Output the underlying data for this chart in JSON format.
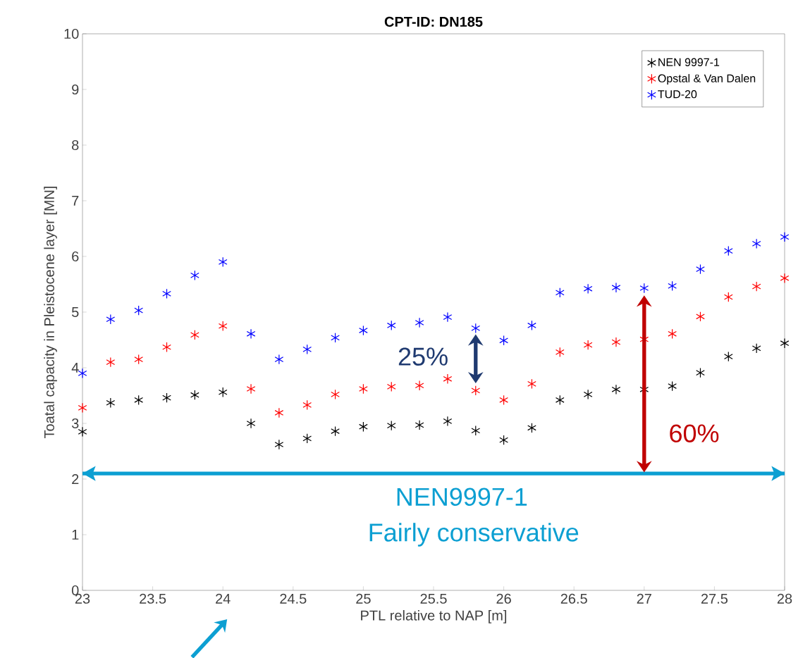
{
  "chart_data": {
    "type": "scatter",
    "title": "CPT-ID: DN185",
    "xlabel": "PTL relative to NAP [m]",
    "ylabel": "Toatal capacity in Pleistocene layer [MN]",
    "x": [
      23,
      23.2,
      23.4,
      23.6,
      23.8,
      24,
      24.2,
      24.4,
      24.6,
      24.8,
      25,
      25.2,
      25.4,
      25.6,
      25.8,
      26,
      26.2,
      26.4,
      26.6,
      26.8,
      27,
      27.2,
      27.4,
      27.6,
      27.8,
      28
    ],
    "series": [
      {
        "name": "NEN 9997-1",
        "color": "#000000",
        "values": [
          2.85,
          3.37,
          3.42,
          3.46,
          3.51,
          3.56,
          3.0,
          2.62,
          2.73,
          2.86,
          2.94,
          2.96,
          2.97,
          3.04,
          2.87,
          2.7,
          2.92,
          3.42,
          3.52,
          3.61,
          3.61,
          3.67,
          3.91,
          4.2,
          4.35,
          4.44
        ]
      },
      {
        "name": "Opstal & Van Dalen",
        "color": "#ff0000",
        "values": [
          3.28,
          4.1,
          4.15,
          4.37,
          4.59,
          4.75,
          3.62,
          3.19,
          3.33,
          3.52,
          3.62,
          3.66,
          3.68,
          3.8,
          3.59,
          3.42,
          3.71,
          4.28,
          4.41,
          4.46,
          4.51,
          4.61,
          4.92,
          5.27,
          5.46,
          5.61
        ]
      },
      {
        "name": "TUD-20",
        "color": "#0000ff",
        "values": [
          3.9,
          4.87,
          5.03,
          5.33,
          5.66,
          5.9,
          4.61,
          4.15,
          4.33,
          4.54,
          4.67,
          4.76,
          4.81,
          4.91,
          4.71,
          4.49,
          4.76,
          5.35,
          5.42,
          5.44,
          5.43,
          5.47,
          5.77,
          6.1,
          6.23,
          6.35
        ]
      }
    ],
    "xlim": [
      23,
      28
    ],
    "ylim": [
      0,
      10
    ],
    "xticks": [
      23,
      23.5,
      24,
      24.5,
      25,
      25.5,
      26,
      26.5,
      27,
      27.5,
      28
    ],
    "yticks": [
      0,
      1,
      2,
      3,
      4,
      5,
      6,
      7,
      8,
      9,
      10
    ],
    "marker": "cross",
    "legend": "top right",
    "ref_lines": [
      {
        "axis": "y",
        "value": 2.1,
        "color": "#0c9fd2"
      }
    ],
    "annotations": [
      "25%",
      "60%",
      "NEN9997-1",
      "Fairly conservative"
    ]
  }
}
